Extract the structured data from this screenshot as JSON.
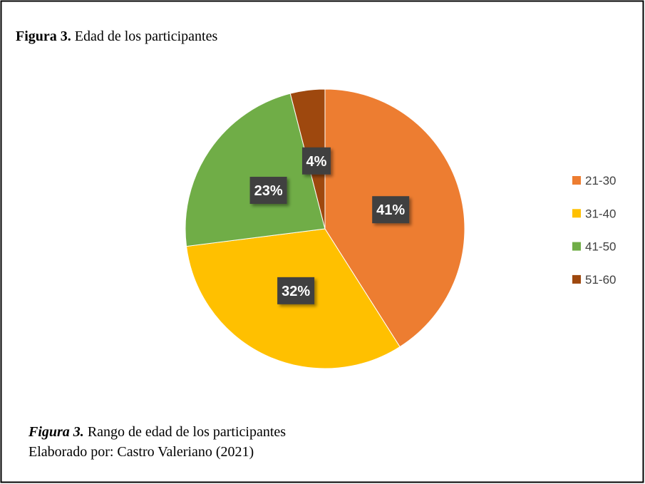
{
  "chart_data": {
    "type": "pie",
    "title_label": "Figura 3.",
    "title": "Edad de los participantes",
    "categories": [
      "21-30",
      "31-40",
      "41-50",
      "51-60"
    ],
    "values": [
      41,
      32,
      23,
      4
    ],
    "value_labels": [
      "41%",
      "32%",
      "23%",
      "4%"
    ],
    "colors": [
      "#ed7d31",
      "#ffc000",
      "#70ad47",
      "#9e480e"
    ],
    "legend": "right",
    "caption_label": "Figura 3.",
    "caption": "Rango de edad de los participantes",
    "source": "Elaborado por: Castro Valeriano (2021)"
  }
}
